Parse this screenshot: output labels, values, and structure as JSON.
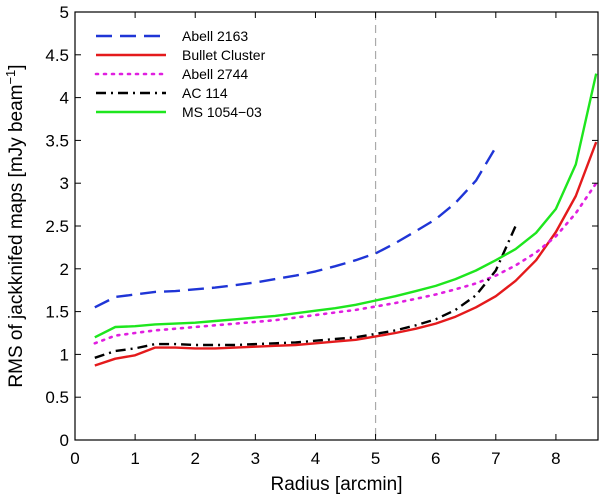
{
  "chart_data": {
    "type": "line",
    "title": "",
    "xlabel": "Radius [arcmin]",
    "ylabel": "RMS of jackknifed maps [mJy beam",
    "ylabel_sup": "−1",
    "ylabel_close": "]",
    "xlim": [
      0,
      8.7
    ],
    "ylim": [
      0,
      5
    ],
    "xticks": [
      0,
      1,
      2,
      3,
      4,
      5,
      6,
      7,
      8
    ],
    "yticks": [
      0,
      0.5,
      1,
      1.5,
      2,
      2.5,
      3,
      3.5,
      4,
      4.5,
      5
    ],
    "xtick_labels": [
      "0",
      "1",
      "2",
      "3",
      "4",
      "5",
      "6",
      "7",
      "8"
    ],
    "ytick_labels": [
      "0",
      "0.5",
      "1",
      "1.5",
      "2",
      "2.5",
      "3",
      "3.5",
      "4",
      "4.5",
      "5"
    ],
    "grid": false,
    "legend_position": "top-left",
    "reference_line": {
      "x": 5,
      "style": "dashed",
      "color": "#aaaaaa"
    },
    "series": [
      {
        "name": "Abell 2163",
        "color": "#1f35d6",
        "style": "dashed",
        "x": [
          0.33,
          0.67,
          1.0,
          1.33,
          1.67,
          2.0,
          2.33,
          2.67,
          3.0,
          3.33,
          3.67,
          4.0,
          4.33,
          4.67,
          5.0,
          5.33,
          5.67,
          6.0,
          6.33,
          6.67,
          7.0
        ],
        "y": [
          1.55,
          1.67,
          1.7,
          1.73,
          1.74,
          1.76,
          1.78,
          1.81,
          1.84,
          1.88,
          1.92,
          1.97,
          2.03,
          2.1,
          2.18,
          2.3,
          2.44,
          2.58,
          2.77,
          3.03,
          3.42
        ]
      },
      {
        "name": "Bullet Cluster",
        "color": "#e41a1c",
        "style": "solid",
        "x": [
          0.33,
          0.67,
          1.0,
          1.33,
          1.67,
          2.0,
          2.33,
          2.67,
          3.0,
          3.33,
          3.67,
          4.0,
          4.33,
          4.67,
          5.0,
          5.33,
          5.67,
          6.0,
          6.33,
          6.67,
          7.0,
          7.33,
          7.67,
          8.0,
          8.33,
          8.67
        ],
        "y": [
          0.87,
          0.95,
          0.99,
          1.08,
          1.08,
          1.07,
          1.07,
          1.08,
          1.09,
          1.1,
          1.11,
          1.13,
          1.15,
          1.17,
          1.21,
          1.25,
          1.3,
          1.36,
          1.44,
          1.55,
          1.68,
          1.86,
          2.1,
          2.43,
          2.85,
          3.48
        ]
      },
      {
        "name": "Abell 2744",
        "color": "#e01fe0",
        "style": "dotted",
        "x": [
          0.33,
          0.67,
          1.0,
          1.33,
          1.67,
          2.0,
          2.33,
          2.67,
          3.0,
          3.33,
          3.67,
          4.0,
          4.33,
          4.67,
          5.0,
          5.33,
          5.67,
          6.0,
          6.33,
          6.67,
          7.0,
          7.33,
          7.67,
          8.0,
          8.33,
          8.67
        ],
        "y": [
          1.13,
          1.22,
          1.25,
          1.28,
          1.3,
          1.32,
          1.34,
          1.36,
          1.38,
          1.4,
          1.43,
          1.46,
          1.49,
          1.52,
          1.56,
          1.6,
          1.65,
          1.7,
          1.76,
          1.83,
          1.92,
          2.04,
          2.19,
          2.38,
          2.65,
          3.0
        ]
      },
      {
        "name": "AC 114",
        "color": "#000000",
        "style": "dashdot",
        "x": [
          0.33,
          0.67,
          1.0,
          1.33,
          1.67,
          2.0,
          2.33,
          2.67,
          3.0,
          3.33,
          3.67,
          4.0,
          4.33,
          4.67,
          5.0,
          5.33,
          5.67,
          6.0,
          6.33,
          6.67,
          7.0,
          7.33
        ],
        "y": [
          0.96,
          1.04,
          1.07,
          1.12,
          1.12,
          1.11,
          1.11,
          1.11,
          1.12,
          1.13,
          1.14,
          1.16,
          1.18,
          1.2,
          1.24,
          1.28,
          1.34,
          1.41,
          1.52,
          1.69,
          1.98,
          2.5
        ]
      },
      {
        "name": "MS 1054−03",
        "color": "#1ee61e",
        "style": "solid",
        "x": [
          0.33,
          0.67,
          1.0,
          1.33,
          1.67,
          2.0,
          2.33,
          2.67,
          3.0,
          3.33,
          3.67,
          4.0,
          4.33,
          4.67,
          5.0,
          5.33,
          5.67,
          6.0,
          6.33,
          6.67,
          7.0,
          7.33,
          7.67,
          8.0,
          8.33,
          8.67
        ],
        "y": [
          1.2,
          1.32,
          1.33,
          1.35,
          1.36,
          1.37,
          1.39,
          1.41,
          1.43,
          1.45,
          1.48,
          1.51,
          1.54,
          1.58,
          1.63,
          1.68,
          1.74,
          1.8,
          1.88,
          1.98,
          2.1,
          2.23,
          2.42,
          2.7,
          3.22,
          4.28
        ]
      }
    ]
  }
}
